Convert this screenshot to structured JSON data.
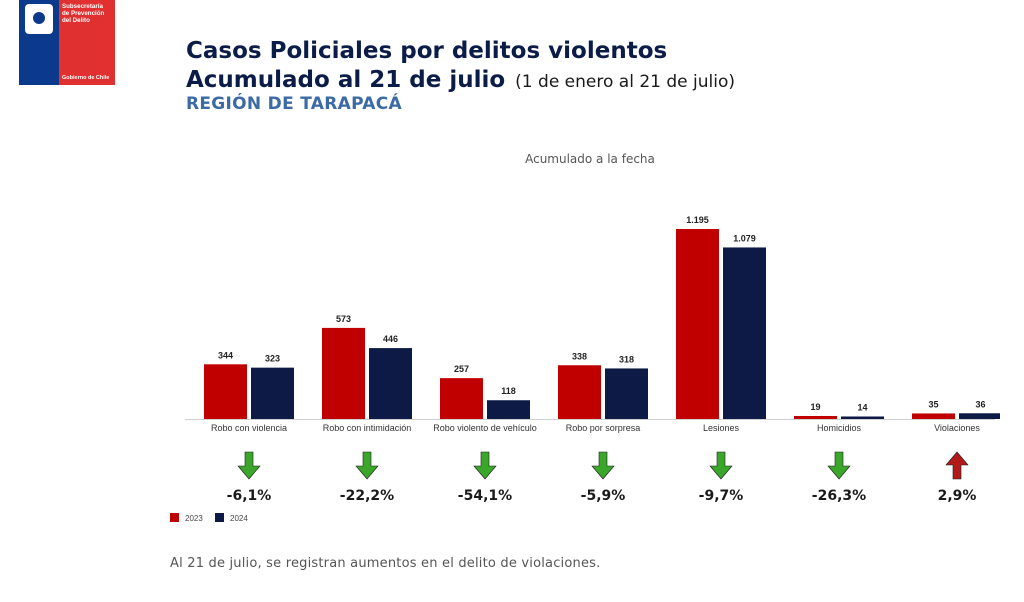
{
  "logo": {
    "org_name": "Subsecretaría\nde Prevención\ndel Delito",
    "gov_name": "Gobierno de Chile",
    "colors": {
      "blue": "#0b3a8c",
      "red": "#e0302f"
    }
  },
  "header": {
    "title_line1": "Casos Policiales por delitos violentos",
    "title_line2": "Acumulado al 21 de julio",
    "title_range": "(1 de enero al 21 de julio)",
    "region": "REGIÓN DE TARAPACÁ"
  },
  "chart_data": {
    "type": "bar",
    "title": "Acumulado a la fecha",
    "categories": [
      "Robo con violencia",
      "Robo con intimidación",
      "Robo violento de vehículo",
      "Robo por sorpresa",
      "Lesiones",
      "Homicidios",
      "Violaciones"
    ],
    "series": [
      {
        "name": "2023",
        "color": "#c00000",
        "values": [
          344,
          573,
          257,
          338,
          1195,
          19,
          35
        ],
        "labels": [
          "344",
          "573",
          "257",
          "338",
          "1.195",
          "19",
          "35"
        ]
      },
      {
        "name": "2024",
        "color": "#0c1a45",
        "values": [
          323,
          446,
          118,
          318,
          1079,
          14,
          36
        ],
        "labels": [
          "323",
          "446",
          "118",
          "318",
          "1.079",
          "14",
          "36"
        ]
      }
    ],
    "changes": [
      {
        "label": "-6,1%",
        "direction": "down",
        "icon": "arrow-down-icon"
      },
      {
        "label": "-22,2%",
        "direction": "down",
        "icon": "arrow-down-icon"
      },
      {
        "label": "-54,1%",
        "direction": "down",
        "icon": "arrow-down-icon"
      },
      {
        "label": "-5,9%",
        "direction": "down",
        "icon": "arrow-down-icon"
      },
      {
        "label": "-9,7%",
        "direction": "down",
        "icon": "arrow-down-icon"
      },
      {
        "label": "-26,3%",
        "direction": "down",
        "icon": "arrow-down-icon"
      },
      {
        "label": "2,9%",
        "direction": "up",
        "icon": "arrow-up-icon"
      }
    ],
    "arrow_colors": {
      "down": "#3aa62a",
      "up": "#b21a1a"
    },
    "ylim": [
      0,
      1300
    ],
    "grid": false,
    "legend_position": "bottom-left"
  },
  "footer": {
    "note": "Al 21 de julio, se registran aumentos en el delito de violaciones."
  }
}
